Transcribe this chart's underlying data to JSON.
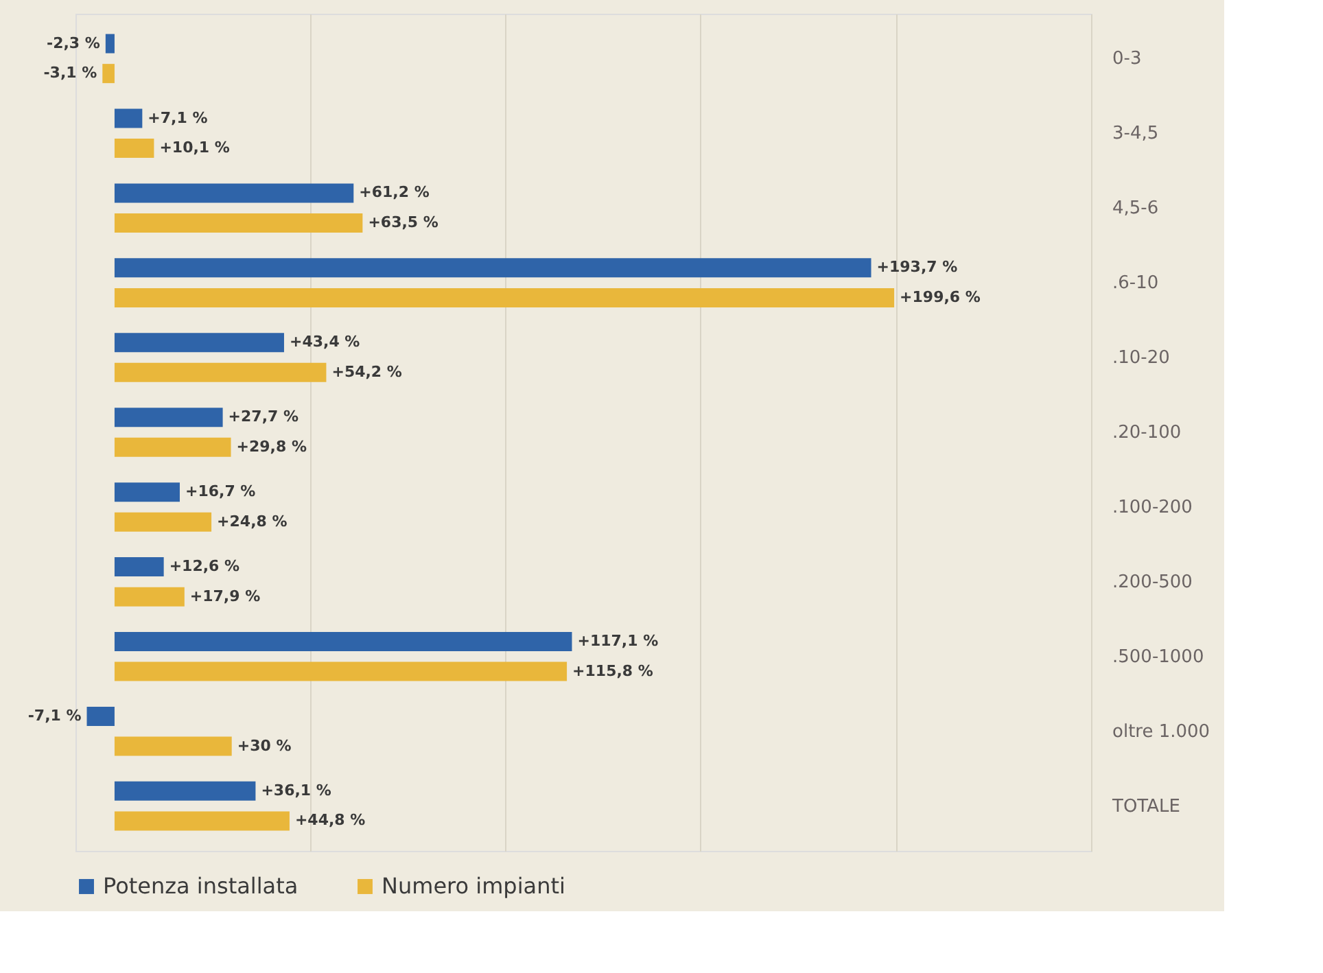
{
  "chart_data": {
    "type": "bar",
    "orientation": "horizontal",
    "categories": [
      "0-3",
      "3-4,5",
      "4,5-6",
      ".6-10",
      ".10-20",
      ".20-100",
      ".100-200",
      ".200-500",
      ".500-1000",
      "oltre 1.000",
      "TOTALE"
    ],
    "series": [
      {
        "name": "Potenza installata",
        "color": "#2f64a9",
        "values": [
          -2.3,
          7.1,
          61.2,
          193.7,
          43.4,
          27.7,
          16.7,
          12.6,
          117.1,
          -7.1,
          36.1
        ],
        "value_labels": [
          "-2,3 %",
          "+7,1 %",
          "+61,2 %",
          "+193,7 %",
          "+43,4 %",
          "+27,7 %",
          "+16,7 %",
          "+12,6 %",
          "+117,1 %",
          "-7,1 %",
          "+36,1 %"
        ]
      },
      {
        "name": "Numero impianti",
        "color": "#e9b73b",
        "values": [
          -3.1,
          10.1,
          63.5,
          199.6,
          54.2,
          29.8,
          24.8,
          17.9,
          115.8,
          30,
          44.8
        ],
        "value_labels": [
          "-3,1 %",
          "+10,1 %",
          "+63,5 %",
          "+199,6 %",
          "+54,2 %",
          "+29,8 %",
          "+24,8 %",
          "+17,9 %",
          "+115,8 %",
          "+30 %",
          "+44,8 %"
        ]
      }
    ],
    "xlim": [
      -10,
      250
    ],
    "xticks": [
      {
        "value": 50,
        "label": null
      },
      {
        "value": 100,
        "label": null
      },
      {
        "value": 150,
        "label": null
      },
      {
        "value": 200,
        "label": null
      },
      {
        "value": 250,
        "label": null
      }
    ],
    "grid": "x",
    "legend": "bottom",
    "tick_labels": "y"
  }
}
